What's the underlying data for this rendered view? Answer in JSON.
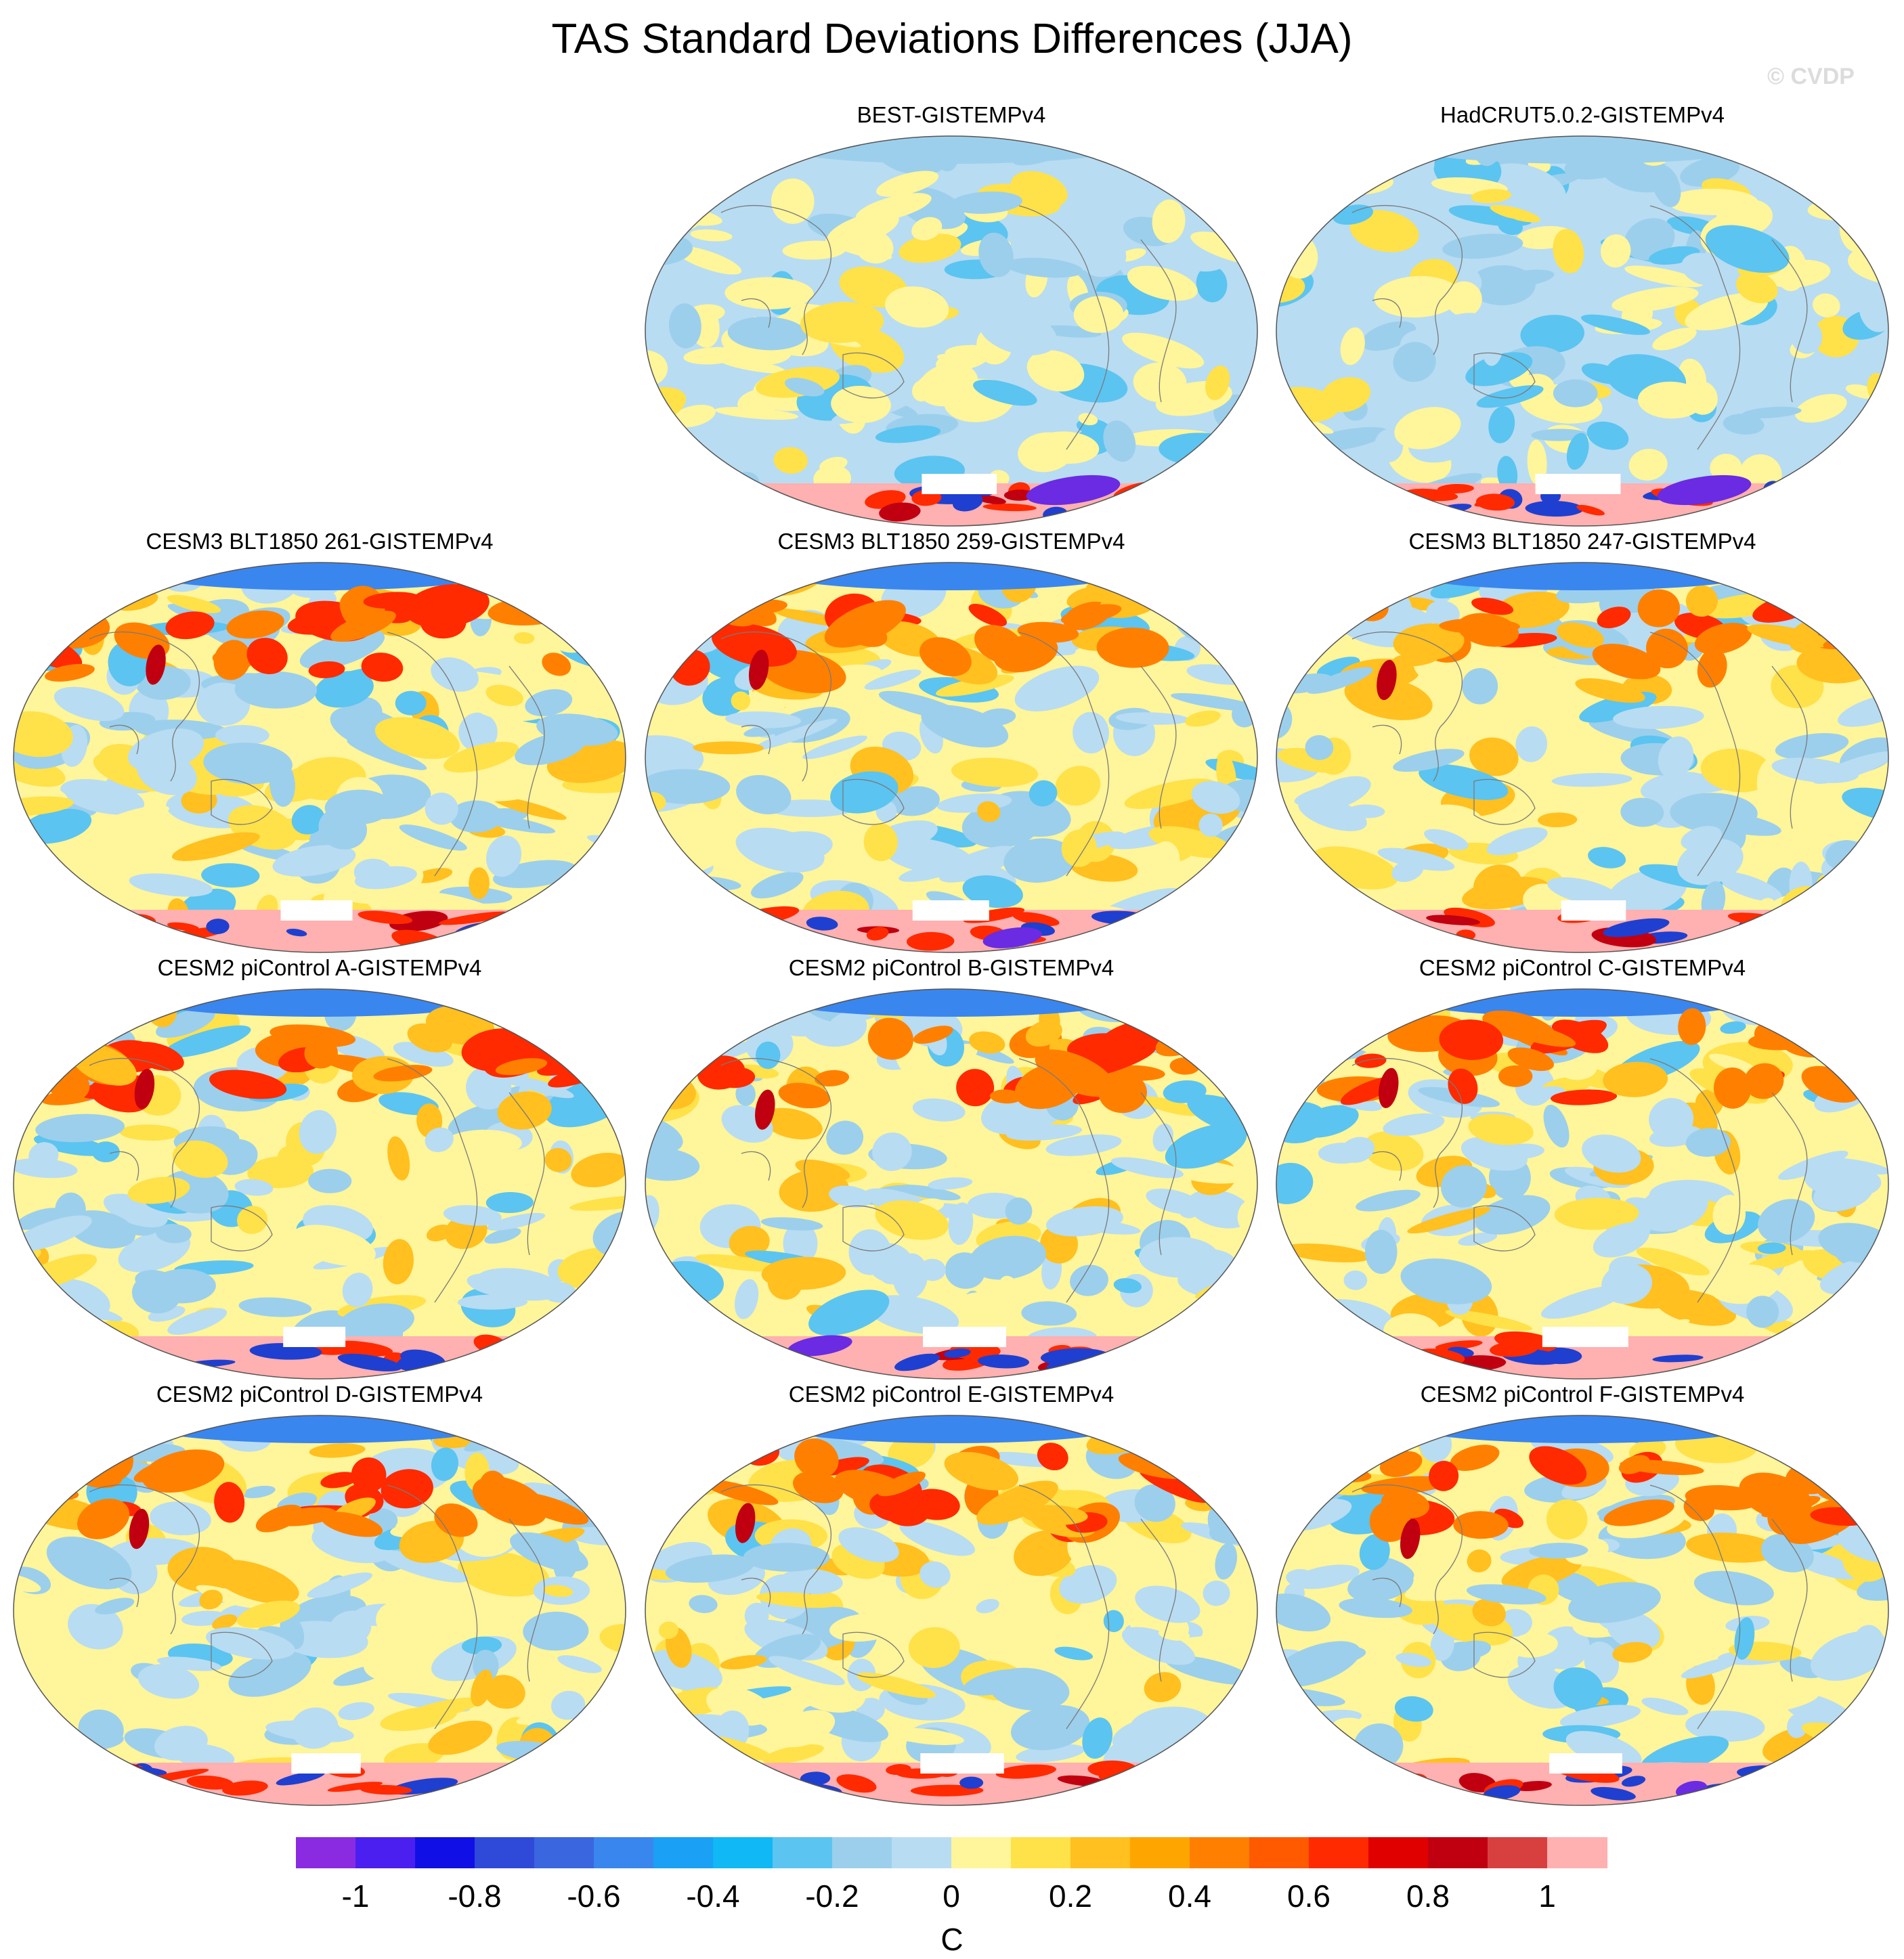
{
  "title": "TAS Standard Deviations Differences (JJA)",
  "watermark": "© CVDP",
  "colorbar": {
    "units": "C",
    "tick_labels": [
      "-1",
      "-0.8",
      "-0.6",
      "-0.4",
      "-0.2",
      "0",
      "0.2",
      "0.4",
      "0.6",
      "0.8",
      "1"
    ],
    "tick_values": [
      -1,
      -0.8,
      -0.6,
      -0.4,
      -0.2,
      0,
      0.2,
      0.4,
      0.6,
      0.8,
      1
    ],
    "colors": [
      "#8a2be2",
      "#4b1ff0",
      "#1010e6",
      "#2f4ad9",
      "#3a66e0",
      "#3a86ef",
      "#1aa0f5",
      "#10b8f5",
      "#5cc4f0",
      "#9ccfec",
      "#b8dcf2",
      "#fff59a",
      "#ffe14a",
      "#ffc020",
      "#ffa500",
      "#ff8000",
      "#ff5a00",
      "#ff2a00",
      "#e00000",
      "#c00010",
      "#d84040",
      "#ffb0b0"
    ]
  },
  "panels": [
    {
      "id": "best",
      "label": "BEST-GISTEMPv4",
      "style": "obs",
      "seed": 3
    },
    {
      "id": "hadcrut",
      "label": "HadCRUT5.0.2-GISTEMPv4",
      "style": "obs",
      "seed": 7
    },
    {
      "id": "cesm3-261",
      "label": "CESM3 BLT1850 261-GISTEMPv4",
      "style": "model",
      "seed": 11
    },
    {
      "id": "cesm3-259",
      "label": "CESM3 BLT1850 259-GISTEMPv4",
      "style": "model",
      "seed": 13
    },
    {
      "id": "cesm3-247",
      "label": "CESM3 BLT1850 247-GISTEMPv4",
      "style": "model",
      "seed": 17
    },
    {
      "id": "cesm2-a",
      "label": "CESM2 piControl A-GISTEMPv4",
      "style": "model",
      "seed": 19
    },
    {
      "id": "cesm2-b",
      "label": "CESM2 piControl B-GISTEMPv4",
      "style": "model",
      "seed": 23
    },
    {
      "id": "cesm2-c",
      "label": "CESM2 piControl C-GISTEMPv4",
      "style": "model",
      "seed": 29
    },
    {
      "id": "cesm2-d",
      "label": "CESM2 piControl D-GISTEMPv4",
      "style": "model",
      "seed": 31
    },
    {
      "id": "cesm2-e",
      "label": "CESM2 piControl E-GISTEMPv4",
      "style": "model",
      "seed": 37
    },
    {
      "id": "cesm2-f",
      "label": "CESM2 piControl F-GISTEMPv4",
      "style": "model",
      "seed": 41
    }
  ]
}
